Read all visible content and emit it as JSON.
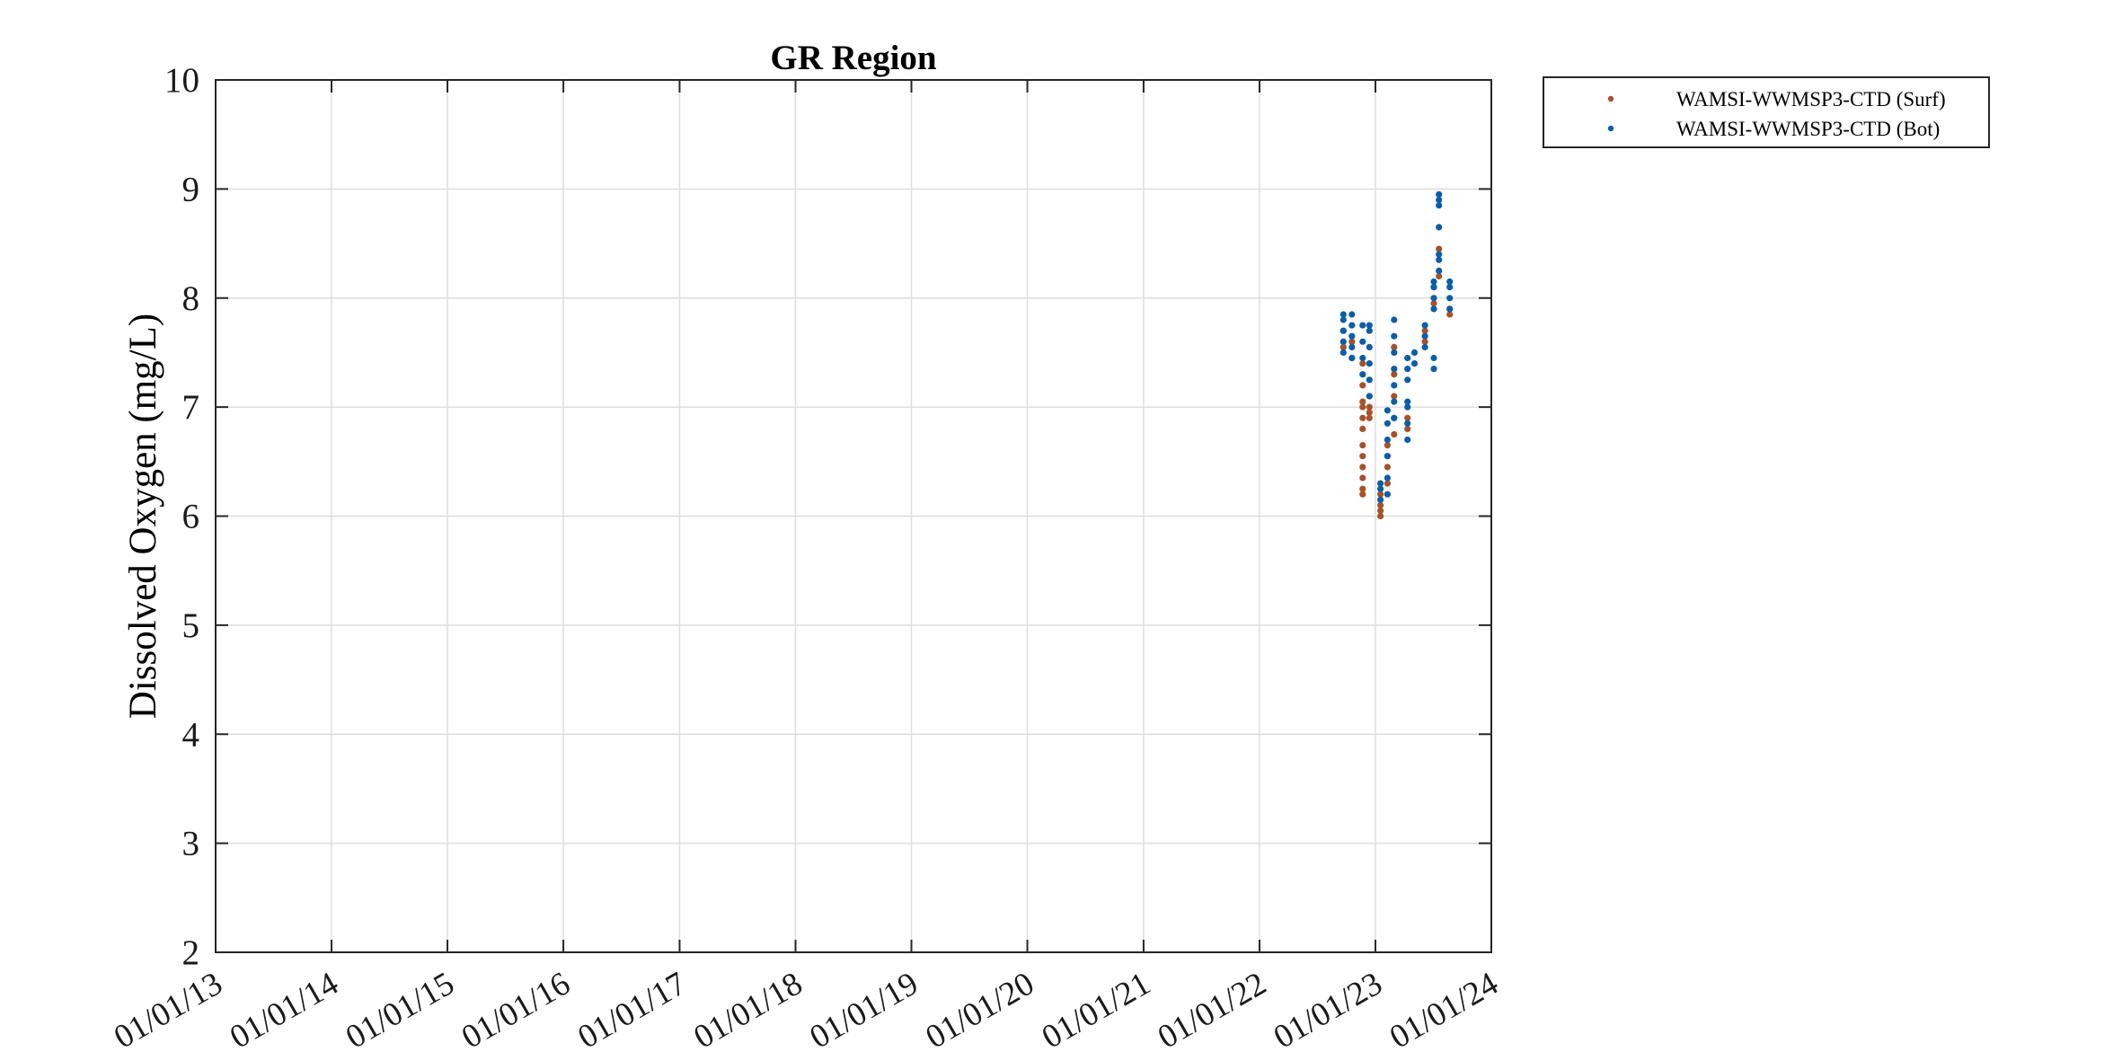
{
  "chart_data": {
    "type": "scatter",
    "title": "GR Region",
    "xlabel": "",
    "ylabel": "Dissolved Oxygen (mg/L)",
    "x_type": "date",
    "xlim": [
      "2013-01-01",
      "2024-01-01"
    ],
    "ylim": [
      2,
      10
    ],
    "xticks": [
      "2013-01-01",
      "2014-01-01",
      "2015-01-01",
      "2016-01-01",
      "2017-01-01",
      "2018-01-01",
      "2019-01-01",
      "2020-01-01",
      "2021-01-01",
      "2022-01-01",
      "2023-01-01",
      "2024-01-01"
    ],
    "xtick_labels": [
      "01/01/13",
      "01/01/14",
      "01/01/15",
      "01/01/16",
      "01/01/17",
      "01/01/18",
      "01/01/19",
      "01/01/20",
      "01/01/21",
      "01/01/22",
      "01/01/23",
      "01/01/24"
    ],
    "yticks": [
      2,
      3,
      4,
      5,
      6,
      7,
      8,
      9,
      10
    ],
    "grid": true,
    "legend_position": "outside-top-right",
    "series": [
      {
        "name": "WAMSI-WWMSP3-CTD (Surf)",
        "color": "#a5522a",
        "points": [
          [
            "2022-09-22",
            7.55
          ],
          [
            "2022-09-22",
            7.7
          ],
          [
            "2022-10-19",
            7.45
          ],
          [
            "2022-10-19",
            7.6
          ],
          [
            "2022-11-22",
            7.4
          ],
          [
            "2022-11-22",
            7.2
          ],
          [
            "2022-11-22",
            7.0
          ],
          [
            "2022-11-22",
            6.9
          ],
          [
            "2022-11-22",
            6.8
          ],
          [
            "2022-11-22",
            6.65
          ],
          [
            "2022-11-22",
            6.55
          ],
          [
            "2022-11-22",
            6.45
          ],
          [
            "2022-11-22",
            6.35
          ],
          [
            "2022-11-22",
            6.25
          ],
          [
            "2022-11-22",
            6.2
          ],
          [
            "2022-11-22",
            7.05
          ],
          [
            "2022-12-13",
            7.1
          ],
          [
            "2022-12-13",
            7.0
          ],
          [
            "2022-12-13",
            6.95
          ],
          [
            "2022-12-13",
            6.9
          ],
          [
            "2023-01-17",
            6.0
          ],
          [
            "2023-01-17",
            6.05
          ],
          [
            "2023-01-17",
            6.1
          ],
          [
            "2023-01-17",
            6.2
          ],
          [
            "2023-02-08",
            6.55
          ],
          [
            "2023-02-08",
            6.65
          ],
          [
            "2023-02-08",
            6.45
          ],
          [
            "2023-02-08",
            6.3
          ],
          [
            "2023-03-01",
            7.55
          ],
          [
            "2023-03-01",
            7.3
          ],
          [
            "2023-03-01",
            7.1
          ],
          [
            "2023-03-01",
            6.9
          ],
          [
            "2023-03-01",
            6.75
          ],
          [
            "2023-04-12",
            6.9
          ],
          [
            "2023-04-12",
            6.8
          ],
          [
            "2023-06-06",
            7.7
          ],
          [
            "2023-06-06",
            7.6
          ],
          [
            "2023-07-04",
            8.1
          ],
          [
            "2023-07-04",
            7.95
          ],
          [
            "2023-07-20",
            8.45
          ],
          [
            "2023-07-20",
            8.2
          ],
          [
            "2023-08-23",
            7.9
          ],
          [
            "2023-08-23",
            7.85
          ]
        ]
      },
      {
        "name": "WAMSI-WWMSP3-CTD (Bot)",
        "color": "#0d5ea6",
        "points": [
          [
            "2022-09-22",
            7.5
          ],
          [
            "2022-09-22",
            7.6
          ],
          [
            "2022-09-22",
            7.7
          ],
          [
            "2022-09-22",
            7.8
          ],
          [
            "2022-09-22",
            7.85
          ],
          [
            "2022-10-19",
            7.45
          ],
          [
            "2022-10-19",
            7.55
          ],
          [
            "2022-10-19",
            7.65
          ],
          [
            "2022-10-19",
            7.75
          ],
          [
            "2022-10-19",
            7.85
          ],
          [
            "2022-11-22",
            7.3
          ],
          [
            "2022-11-22",
            7.45
          ],
          [
            "2022-11-22",
            7.6
          ],
          [
            "2022-11-22",
            7.75
          ],
          [
            "2022-12-13",
            7.1
          ],
          [
            "2022-12-13",
            7.25
          ],
          [
            "2022-12-13",
            7.4
          ],
          [
            "2022-12-13",
            7.55
          ],
          [
            "2022-12-13",
            7.7
          ],
          [
            "2022-12-13",
            7.75
          ],
          [
            "2023-01-17",
            6.15
          ],
          [
            "2023-01-17",
            6.25
          ],
          [
            "2023-01-17",
            6.3
          ],
          [
            "2023-02-08",
            6.2
          ],
          [
            "2023-02-08",
            6.35
          ],
          [
            "2023-02-08",
            6.55
          ],
          [
            "2023-02-08",
            6.7
          ],
          [
            "2023-02-08",
            6.85
          ],
          [
            "2023-02-08",
            6.97
          ],
          [
            "2023-03-01",
            6.9
          ],
          [
            "2023-03-01",
            7.05
          ],
          [
            "2023-03-01",
            7.2
          ],
          [
            "2023-03-01",
            7.35
          ],
          [
            "2023-03-01",
            7.5
          ],
          [
            "2023-03-01",
            7.65
          ],
          [
            "2023-03-01",
            7.8
          ],
          [
            "2023-04-12",
            6.7
          ],
          [
            "2023-04-12",
            6.85
          ],
          [
            "2023-04-12",
            7.0
          ],
          [
            "2023-04-12",
            7.05
          ],
          [
            "2023-04-12",
            7.25
          ],
          [
            "2023-04-12",
            7.35
          ],
          [
            "2023-04-12",
            7.45
          ],
          [
            "2023-05-04",
            7.4
          ],
          [
            "2023-05-04",
            7.5
          ],
          [
            "2023-06-06",
            7.55
          ],
          [
            "2023-06-06",
            7.65
          ],
          [
            "2023-06-06",
            7.75
          ],
          [
            "2023-07-04",
            7.35
          ],
          [
            "2023-07-04",
            7.45
          ],
          [
            "2023-07-04",
            7.9
          ],
          [
            "2023-07-04",
            8.0
          ],
          [
            "2023-07-04",
            8.1
          ],
          [
            "2023-07-04",
            8.15
          ],
          [
            "2023-07-20",
            8.25
          ],
          [
            "2023-07-20",
            8.35
          ],
          [
            "2023-07-20",
            8.4
          ],
          [
            "2023-07-20",
            8.65
          ],
          [
            "2023-07-20",
            8.85
          ],
          [
            "2023-07-20",
            8.9
          ],
          [
            "2023-07-20",
            8.95
          ],
          [
            "2023-08-23",
            7.9
          ],
          [
            "2023-08-23",
            8.0
          ],
          [
            "2023-08-23",
            8.1
          ],
          [
            "2023-08-23",
            8.15
          ]
        ]
      }
    ]
  }
}
